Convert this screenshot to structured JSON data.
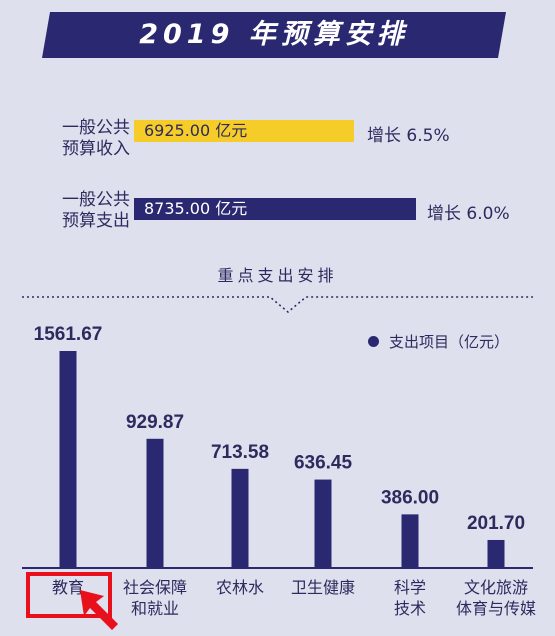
{
  "banner": {
    "title": "2019 年预算安排"
  },
  "income": {
    "label_line1": "一般公共",
    "label_line2": "预算收入",
    "amount": "6925.00 亿元",
    "growth": "增长 6.5%"
  },
  "expense": {
    "label_line1": "一般公共",
    "label_line2": "预算支出",
    "amount": "8735.00 亿元",
    "growth": "增长 6.0%"
  },
  "section": {
    "title": "重点支出安排"
  },
  "legend": {
    "label": "支出项目（亿元）"
  },
  "colors": {
    "bar": "#2b2872",
    "income": "#f6cc28",
    "highlight": "#e8101a",
    "background": "#dfe0ee"
  },
  "chart_data": {
    "type": "bar",
    "title": "重点支出安排",
    "categories": [
      [
        "教育"
      ],
      [
        "社会保障",
        "和就业"
      ],
      [
        "农林水"
      ],
      [
        "卫生健康"
      ],
      [
        "科学",
        "技术"
      ],
      [
        "文化旅游",
        "体育与传媒"
      ]
    ],
    "values": [
      1561.67,
      929.87,
      713.58,
      636.45,
      386.0,
      201.7
    ],
    "value_labels": [
      "1561.67",
      "929.87",
      "713.58",
      "636.45",
      "386.00",
      "201.70"
    ],
    "series": [
      {
        "name": "支出项目（亿元）",
        "values": [
          1561.67,
          929.87,
          713.58,
          636.45,
          386.0,
          201.7
        ]
      }
    ],
    "ylabel": "亿元",
    "ylim": [
      0,
      1561.67
    ],
    "grid": false,
    "legend_position": "top-right",
    "highlighted_category": "教育"
  }
}
